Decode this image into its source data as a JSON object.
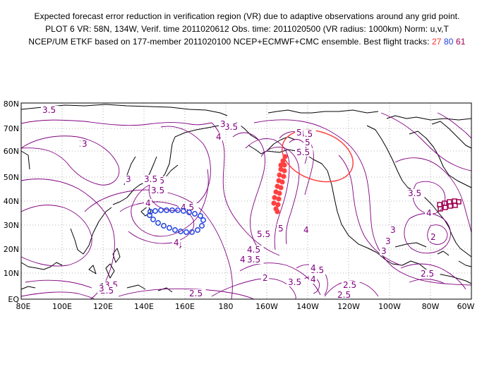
{
  "header": {
    "line1": "Expected forecast error reduction in verification region (VR) due to adaptive observations around any grid point.",
    "line2": "PLOT 6 VR: 58N, 134W, Verif. time 2011020612 Obs. time: 2011020500 (VR radius: 1000km) Norm: u,v,T",
    "line3_prefix": "NCEP/UM ETKF based on 177-member 2011020100 NCEP+ECMWF+CMC ensemble. Best flight tracks:",
    "track1": "27",
    "track2": "80",
    "track3": "61"
  },
  "map": {
    "lat_labels": [
      "80N",
      "70N",
      "60N",
      "50N",
      "40N",
      "30N",
      "20N",
      "10N",
      "EQ"
    ],
    "lon_labels": [
      "80E",
      "100E",
      "120E",
      "140E",
      "160E",
      "180",
      "160W",
      "140W",
      "120W",
      "100W",
      "80W",
      "60W"
    ],
    "colors": {
      "contour": "#800080",
      "vr_circle": "#ff4040",
      "track27": "#ff4040",
      "track80": "#2040e0",
      "track61": "#a0004f",
      "coast": "#000000"
    },
    "contour_labels": [
      "3.5",
      "3",
      "3.5",
      "4",
      "3",
      "3.5",
      "4",
      "4.5",
      "4.5",
      "5",
      "5.5",
      "4",
      "5.5",
      "5",
      "4.5",
      "4",
      "3.5",
      "4",
      "3.5",
      "3.5",
      "4.5",
      "4",
      "3.5",
      "3",
      "3",
      "2.5",
      "2",
      "2",
      "3",
      "3.5",
      "3.5",
      "3",
      "3",
      "2",
      "2.5",
      "2.5",
      "2.5",
      "2.5",
      "3",
      "4",
      "4",
      "2.5",
      "3.5",
      "4",
      "3",
      "4",
      "4.5",
      "5"
    ]
  }
}
